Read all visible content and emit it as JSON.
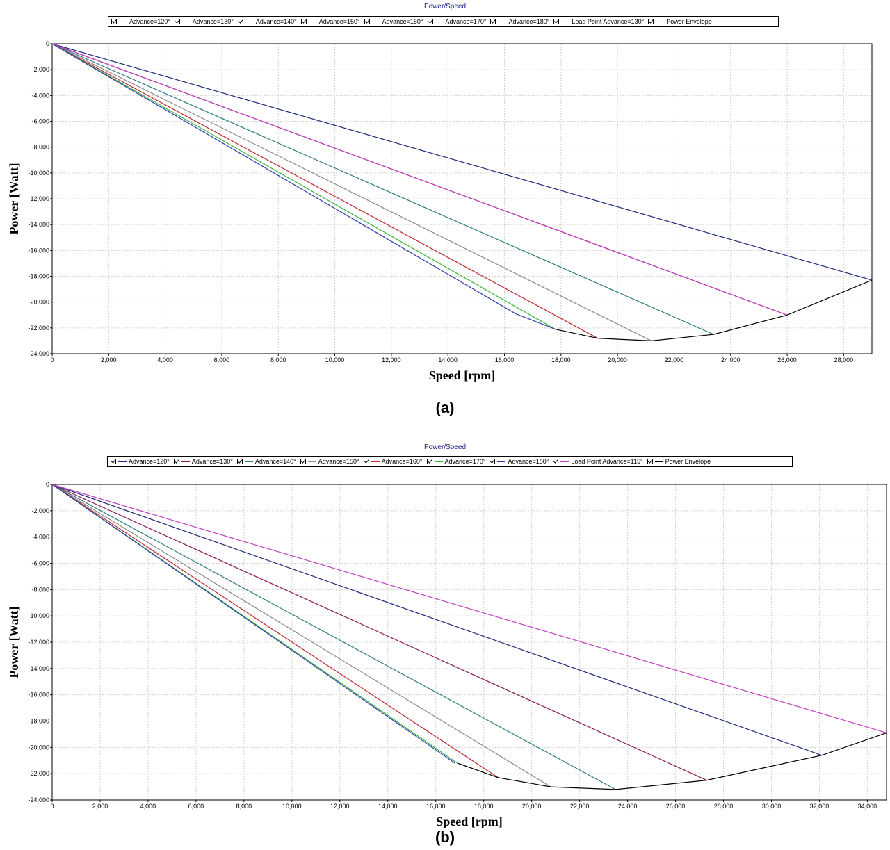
{
  "chart_data": [
    {
      "type": "line",
      "title": "Power/Speed",
      "panel_label": "(a)",
      "xlabel": "Speed [rpm]",
      "ylabel": "Power [Watt]",
      "xlim": [
        0,
        29000
      ],
      "ylim": [
        -24000,
        0
      ],
      "xticks": [
        0,
        2000,
        4000,
        6000,
        8000,
        10000,
        12000,
        14000,
        16000,
        18000,
        20000,
        22000,
        24000,
        26000,
        28000
      ],
      "xtick_labels": [
        "0",
        "2,000",
        "4,000",
        "6,000",
        "8,000",
        "10,000",
        "12,000",
        "14,000",
        "16,000",
        "18,000",
        "20,000",
        "22,000",
        "24,000",
        "26,000",
        "28,000"
      ],
      "yticks": [
        0,
        -2000,
        -4000,
        -6000,
        -8000,
        -10000,
        -12000,
        -14000,
        -16000,
        -18000,
        -20000,
        -22000,
        -24000
      ],
      "ytick_labels": [
        "0",
        "-2,000",
        "-4,000",
        "-6,000",
        "-8,000",
        "-10,000",
        "-12,000",
        "-14,000",
        "-16,000",
        "-18,000",
        "-20,000",
        "-22,000",
        "-24,000"
      ],
      "grid": true,
      "legend_position": "top",
      "series": [
        {
          "name": "Advance=120°",
          "color": "#1f2a7a",
          "x": [
            0,
            29000
          ],
          "y": [
            0,
            -18300
          ]
        },
        {
          "name": "Advance=130°",
          "color": "#8b1a5a",
          "x": [
            0,
            26000
          ],
          "y": [
            0,
            -21000
          ]
        },
        {
          "name": "Advance=140°",
          "color": "#2e7b7b",
          "x": [
            0,
            23400
          ],
          "y": [
            0,
            -22500
          ]
        },
        {
          "name": "Advance=150°",
          "color": "#8a8a8a",
          "x": [
            0,
            21200
          ],
          "y": [
            0,
            -23000
          ]
        },
        {
          "name": "Advance=160°",
          "color": "#c0282c",
          "x": [
            0,
            19300
          ],
          "y": [
            0,
            -22800
          ]
        },
        {
          "name": "Advance=170°",
          "color": "#3fb53f",
          "x": [
            0,
            17800
          ],
          "y": [
            0,
            -22100
          ]
        },
        {
          "name": "Advance=180°",
          "color": "#2b3bb0",
          "x": [
            0,
            16400,
            17800
          ],
          "y": [
            0,
            -20900,
            -22100
          ]
        },
        {
          "name": "Load Point Advance=130°",
          "color": "#c040c0",
          "x": [
            0,
            26000
          ],
          "y": [
            0,
            -21000
          ]
        },
        {
          "name": "Power Envelope",
          "color": "#000000",
          "x": [
            17800,
            19300,
            21200,
            23400,
            26000,
            29000
          ],
          "y": [
            -22100,
            -22800,
            -23000,
            -22500,
            -21000,
            -18300
          ]
        }
      ]
    },
    {
      "type": "line",
      "title": "Power/Speed",
      "panel_label": "(b)",
      "xlabel": "Speed [rpm]",
      "ylabel": "Power [Watt]",
      "xlim": [
        0,
        34800
      ],
      "ylim": [
        -24000,
        0
      ],
      "xticks": [
        0,
        2000,
        4000,
        6000,
        8000,
        10000,
        12000,
        14000,
        16000,
        18000,
        20000,
        22000,
        24000,
        26000,
        28000,
        30000,
        32000,
        34000
      ],
      "xtick_labels": [
        "0",
        "2,000",
        "4,000",
        "6,000",
        "8,000",
        "10,000",
        "12,000",
        "14,000",
        "16,000",
        "18,000",
        "20,000",
        "22,000",
        "24,000",
        "26,000",
        "28,000",
        "30,000",
        "32,000",
        "34,000"
      ],
      "yticks": [
        0,
        -2000,
        -4000,
        -6000,
        -8000,
        -10000,
        -12000,
        -14000,
        -16000,
        -18000,
        -20000,
        -22000,
        -24000
      ],
      "ytick_labels": [
        "0",
        "-2,000",
        "-4,000",
        "-6,000",
        "-8,000",
        "-10,000",
        "-12,000",
        "-14,000",
        "-16,000",
        "-18,000",
        "-20,000",
        "-22,000",
        "-24,000"
      ],
      "grid": true,
      "legend_position": "top",
      "series": [
        {
          "name": "Advance=120°",
          "color": "#1f2a7a",
          "x": [
            0,
            32100
          ],
          "y": [
            0,
            -20600
          ]
        },
        {
          "name": "Advance=130°",
          "color": "#8b1a5a",
          "x": [
            0,
            27300
          ],
          "y": [
            0,
            -22500
          ]
        },
        {
          "name": "Advance=140°",
          "color": "#2e7b7b",
          "x": [
            0,
            23500
          ],
          "y": [
            0,
            -23200
          ]
        },
        {
          "name": "Advance=150°",
          "color": "#8a8a8a",
          "x": [
            0,
            20800
          ],
          "y": [
            0,
            -23000
          ]
        },
        {
          "name": "Advance=160°",
          "color": "#c0282c",
          "x": [
            0,
            18600
          ],
          "y": [
            0,
            -22300
          ]
        },
        {
          "name": "Advance=170°",
          "color": "#3fb53f",
          "x": [
            0,
            16900
          ],
          "y": [
            0,
            -21200
          ]
        },
        {
          "name": "Advance=180°",
          "color": "#2b3bb0",
          "x": [
            0,
            16800
          ],
          "y": [
            0,
            -21200
          ]
        },
        {
          "name": "Load Point Advance=115°",
          "color": "#c040c0",
          "x": [
            0,
            34800
          ],
          "y": [
            0,
            -18900
          ]
        },
        {
          "name": "Power Envelope",
          "color": "#000000",
          "x": [
            16900,
            18600,
            20800,
            23500,
            27300,
            32100,
            34800
          ],
          "y": [
            -21200,
            -22300,
            -23000,
            -23200,
            -22500,
            -20600,
            -18900
          ]
        }
      ]
    }
  ]
}
